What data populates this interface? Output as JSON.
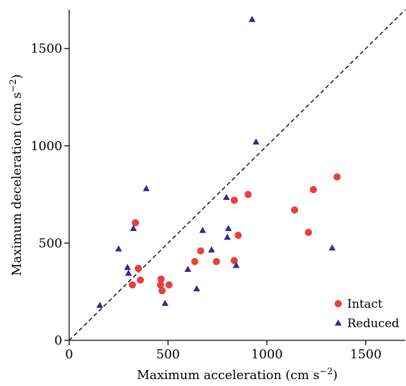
{
  "chart_data": {
    "type": "scatter",
    "xlabel": "Maximum acceleration (cm s",
    "ylabel": "Maximum deceleration (cm s",
    "axis_unit_exponent": "−2",
    "xlim": [
      0,
      1700
    ],
    "ylim": [
      0,
      1700
    ],
    "xticks": [
      0,
      500,
      1000,
      1500
    ],
    "yticks": [
      0,
      500,
      1000,
      1500
    ],
    "xtick_labels": [
      "0",
      "500",
      "1000",
      "1500"
    ],
    "ytick_labels": [
      "0",
      "500",
      "1000",
      "1500"
    ],
    "grid": false,
    "reference_line": "y = x (dashed)",
    "legend_position": "bottom-right",
    "series": [
      {
        "name": "Intact",
        "marker": "circle",
        "color": "#e8413c",
        "points": [
          [
            335,
            605
          ],
          [
            350,
            370
          ],
          [
            360,
            310
          ],
          [
            320,
            285
          ],
          [
            465,
            315
          ],
          [
            462,
            285
          ],
          [
            470,
            255
          ],
          [
            505,
            285
          ],
          [
            635,
            405
          ],
          [
            665,
            460
          ],
          [
            745,
            405
          ],
          [
            835,
            720
          ],
          [
            855,
            540
          ],
          [
            905,
            750
          ],
          [
            835,
            410
          ],
          [
            1140,
            670
          ],
          [
            1210,
            555
          ],
          [
            1235,
            775
          ],
          [
            1355,
            840
          ]
        ]
      },
      {
        "name": "Reduced",
        "marker": "triangle",
        "color": "#3d2590",
        "points": [
          [
            925,
            1650
          ],
          [
            945,
            1020
          ],
          [
            390,
            780
          ],
          [
            325,
            575
          ],
          [
            250,
            470
          ],
          [
            295,
            375
          ],
          [
            300,
            345
          ],
          [
            155,
            180
          ],
          [
            485,
            190
          ],
          [
            600,
            365
          ],
          [
            645,
            265
          ],
          [
            675,
            565
          ],
          [
            720,
            465
          ],
          [
            795,
            735
          ],
          [
            805,
            575
          ],
          [
            800,
            530
          ],
          [
            845,
            385
          ],
          [
            1330,
            475
          ]
        ]
      }
    ]
  }
}
